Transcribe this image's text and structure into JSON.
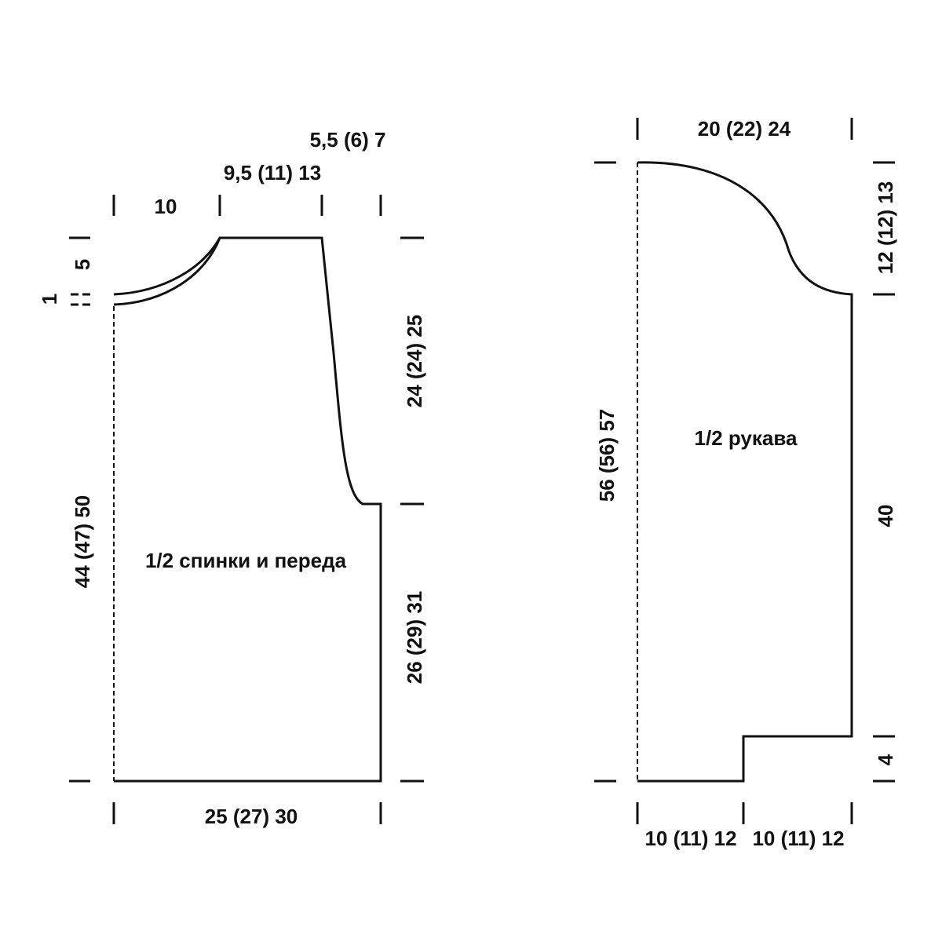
{
  "body_piece": {
    "label": "1/2 спинки и переда",
    "dimensions": {
      "neck_width": "10",
      "shoulder_width": "9,5 (11) 13",
      "armhole_width": "5,5 (6) 7",
      "neck_depth_front": "5",
      "neck_depth_back": "1",
      "armhole_height": "24 (24) 25",
      "side_height": "26 (29) 31",
      "total_height": "44 (47) 50",
      "width": "25 (27) 30"
    }
  },
  "sleeve": {
    "label": "1/2 рукава",
    "dimensions": {
      "top_width": "20 (22) 24",
      "cap_height": "12 (12) 13",
      "total_height": "56 (56) 57",
      "body_height": "40",
      "cuff_height": "4",
      "cuff_width_left": "10 (11) 12",
      "cuff_width_right": "10 (11) 12"
    }
  }
}
